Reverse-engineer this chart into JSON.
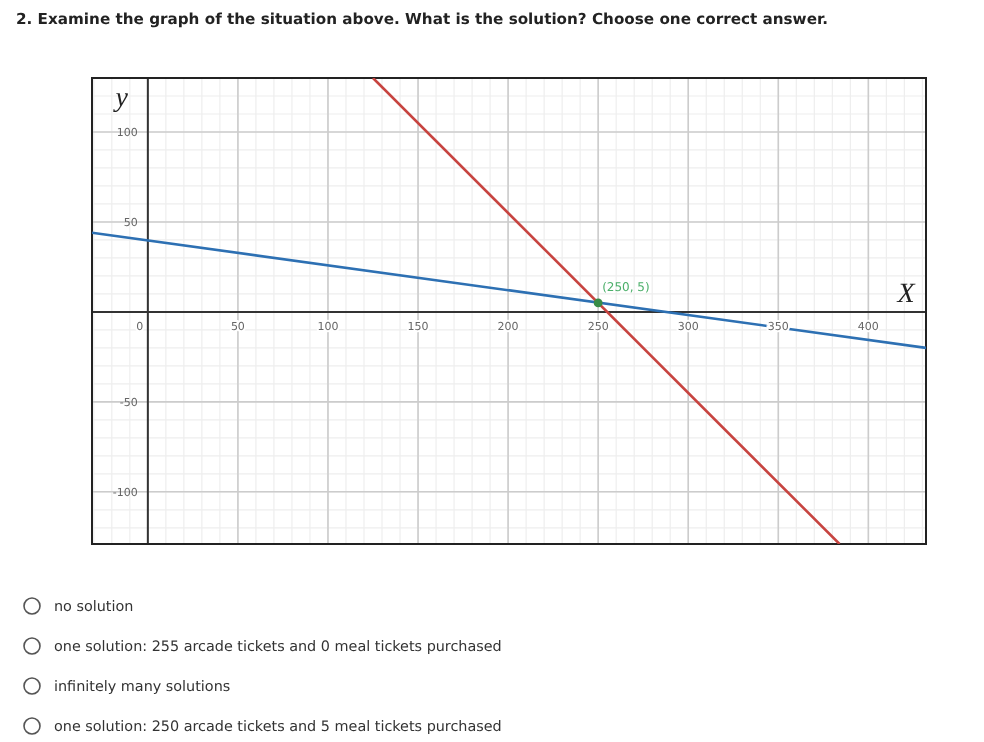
{
  "chart_data": {
    "type": "line",
    "title": "2. Examine the graph of the situation above. What is the solution? Choose one correct answer.",
    "xlabel": "X",
    "ylabel": "y",
    "xlim": [
      -31,
      432
    ],
    "ylim": [
      -129,
      130
    ],
    "xticks": [
      0,
      50,
      100,
      150,
      200,
      250,
      300,
      350,
      400
    ],
    "yticks": [
      -100,
      -50,
      50,
      100
    ],
    "grid": true,
    "marker": "none",
    "line_style": "solid",
    "series": [
      {
        "color": "#2d70b3",
        "x": [
          -31,
          432
        ],
        "values": [
          44,
          -20
        ]
      },
      {
        "color": "#c74440",
        "x": [
          125,
          384
        ],
        "values": [
          130,
          -129
        ]
      },
      {
        "type": "scatter",
        "color": "#388c46",
        "marker": "circle",
        "x": [
          250
        ],
        "values": [
          5
        ]
      }
    ],
    "annotations": [
      {
        "text": "(250, 5)",
        "x": 250,
        "y": 5
      },
      "no solution",
      "one solution: 255 arcade tickets and 0 meal tickets purchased",
      "infinitely many solutions",
      "one solution: 250 arcade tickets and 5 meal tickets purchased"
    ]
  }
}
